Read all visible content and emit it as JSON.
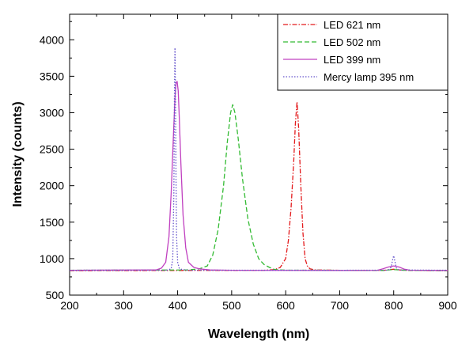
{
  "chart_data": {
    "type": "line",
    "title": "",
    "xlabel": "Wavelength (nm)",
    "ylabel": "Intensity (counts)",
    "xlim": [
      200,
      900
    ],
    "ylim": [
      500,
      4350
    ],
    "xticks": [
      200,
      300,
      400,
      500,
      600,
      700,
      800,
      900
    ],
    "yticks": [
      500,
      1000,
      1500,
      2000,
      2500,
      3000,
      3500,
      4000
    ],
    "xtick_labels": [
      "200",
      "300",
      "400",
      "500",
      "600",
      "700",
      "800",
      "900"
    ],
    "ytick_labels": [
      "500",
      "1000",
      "1500",
      "2000",
      "2500",
      "3000",
      "3500",
      "4000"
    ],
    "grid": false,
    "legend_position": "top-right",
    "series": [
      {
        "name": "LED 621 nm",
        "color": "#e31a1c",
        "dash": "dash-dot",
        "x": [
          200,
          560,
          580,
          590,
          600,
          605,
          610,
          615,
          618,
          621,
          624,
          628,
          632,
          636,
          640,
          645,
          655,
          700,
          780,
          800,
          810,
          820,
          830,
          900
        ],
        "y": [
          835,
          840,
          850,
          880,
          1000,
          1250,
          1700,
          2350,
          2850,
          3150,
          2800,
          2000,
          1350,
          1000,
          900,
          860,
          845,
          840,
          838,
          855,
          845,
          840,
          838,
          835
        ]
      },
      {
        "name": "LED 502 nm",
        "color": "#33bb33",
        "dash": "dashed",
        "x": [
          200,
          420,
          440,
          455,
          465,
          475,
          485,
          492,
          498,
          502,
          506,
          512,
          520,
          530,
          540,
          550,
          560,
          570,
          580,
          600,
          700,
          780,
          800,
          820,
          840,
          900
        ],
        "y": [
          840,
          845,
          860,
          900,
          1050,
          1400,
          2000,
          2600,
          3000,
          3110,
          3000,
          2650,
          2100,
          1550,
          1200,
          1000,
          920,
          880,
          850,
          842,
          840,
          838,
          850,
          840,
          838,
          835
        ]
      },
      {
        "name": "LED 399 nm",
        "color": "#c040c0",
        "dash": "solid",
        "x": [
          200,
          360,
          370,
          378,
          384,
          388,
          392,
          395,
          397,
          399,
          401,
          403,
          406,
          410,
          415,
          420,
          430,
          440,
          460,
          500,
          700,
          770,
          780,
          790,
          800,
          810,
          820,
          830,
          900
        ],
        "y": [
          840,
          845,
          870,
          950,
          1300,
          1900,
          2650,
          3200,
          3400,
          3430,
          3300,
          2950,
          2300,
          1600,
          1150,
          950,
          880,
          860,
          845,
          840,
          838,
          840,
          860,
          885,
          900,
          885,
          855,
          842,
          838
        ]
      },
      {
        "name": "Mercy lamp 395 nm",
        "color": "#6655cc",
        "dash": "dotted",
        "x": [
          200,
          380,
          388,
          391,
          393,
          394,
          395,
          396,
          397,
          398,
          400,
          403,
          408,
          420,
          700,
          790,
          795,
          798,
          800,
          802,
          805,
          810,
          900
        ],
        "y": [
          840,
          842,
          860,
          1000,
          1900,
          3200,
          3890,
          3300,
          2100,
          1300,
          950,
          870,
          850,
          842,
          840,
          842,
          880,
          980,
          1040,
          970,
          870,
          845,
          840
        ]
      }
    ]
  }
}
